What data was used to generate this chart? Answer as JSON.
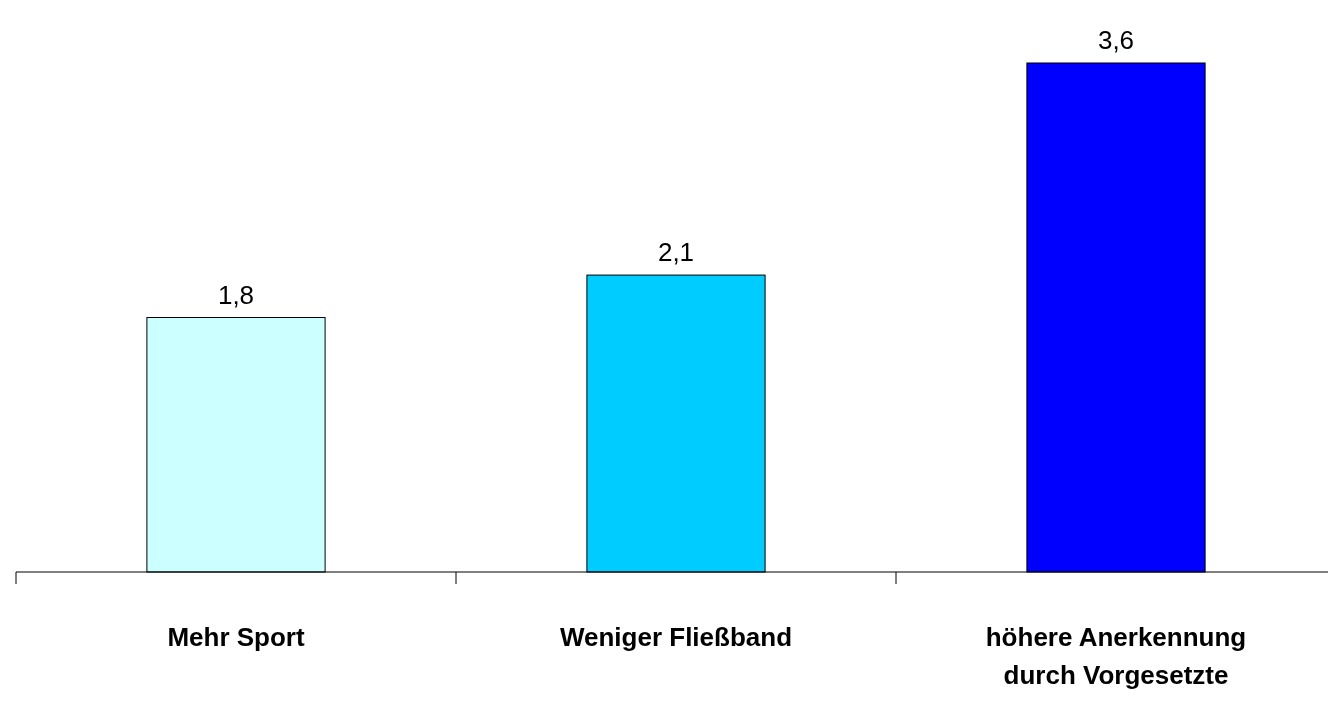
{
  "chart_data": {
    "type": "bar",
    "categories": [
      "Mehr Sport",
      "Weniger Fließband",
      "höhere Anerkennung durch Vorgesetzte"
    ],
    "values": [
      1.8,
      2.1,
      3.6
    ],
    "colors": [
      "#ccffff",
      "#00ccff",
      "#0000ff"
    ],
    "value_labels": [
      "1,8",
      "2,1",
      "3,6"
    ]
  }
}
